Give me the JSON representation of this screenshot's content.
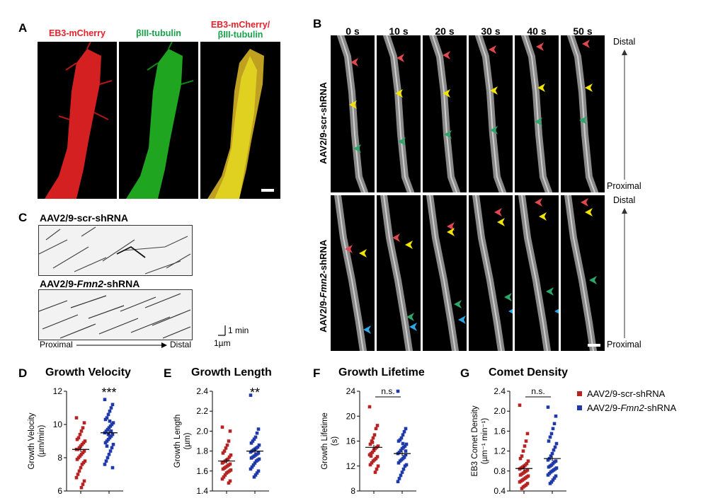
{
  "panel_letters": {
    "A": "A",
    "B": "B",
    "C": "C",
    "D": "D",
    "E": "E",
    "F": "F",
    "G": "G"
  },
  "panelA": {
    "ch1_label": "EB3-mCherry",
    "ch2_label": "βIII-tubulin",
    "merge_label_line1": "EB3-mCherry/",
    "merge_label_line2": "βIII-tubulin",
    "colors": {
      "red": "#e8202a",
      "green": "#16a34a",
      "yellow": "#e0d020"
    }
  },
  "panelB": {
    "times": [
      "0 s",
      "10 s",
      "20 s",
      "30 s",
      "40 s",
      "50 s"
    ],
    "row1_label": "AAV2/9-scr-shRNA",
    "row2_label_pre": "AAV2/9-",
    "row2_label_gene": "Fmn2",
    "row2_label_post": "-shRNA",
    "distal": "Distal",
    "proximal": "Proximal",
    "arrow_colors": {
      "red": "#e2474f",
      "yellow": "#f2e400",
      "green": "#2ea66a",
      "blue": "#2aa8e8"
    }
  },
  "panelC": {
    "kymo1_label": "AAV2/9-scr-shRNA",
    "kymo2_label_pre": "AAV2/9-",
    "kymo2_label_gene": "Fmn2",
    "kymo2_label_post": "-shRNA",
    "axis_proximal": "Proximal",
    "axis_distal": "Distal",
    "scale_time": "1 min",
    "scale_space": "1µm"
  },
  "legend": {
    "scr": "AAV2/9-scr-shRNA",
    "fmn2_pre": "AAV2/9-",
    "fmn2_gene": "Fmn2",
    "fmn2_post": "-shRNA",
    "scr_color": "#b52422",
    "fmn2_color": "#1f3aa8"
  },
  "chart_data": [
    {
      "type": "scatter",
      "panel": "D",
      "title": "Growth Velocity",
      "ylabel_line1": "Growth Velocity",
      "ylabel_line2": "(µm/min)",
      "ylim": [
        6,
        12
      ],
      "yticks": [
        "6",
        "8",
        "10",
        "12"
      ],
      "significance": "***",
      "series": [
        {
          "name": "AAV2/9-scr-shRNA",
          "values": [
            10.4,
            10.1,
            9.8,
            9.6,
            9.4,
            9.2,
            9.1,
            9.0,
            8.9,
            8.8,
            8.7,
            8.6,
            8.5,
            8.5,
            8.4,
            8.3,
            8.2,
            8.1,
            8.0,
            7.9,
            7.8,
            7.7,
            7.6,
            7.4,
            7.2,
            7.0,
            6.8,
            6.6,
            6.4,
            6.2
          ],
          "mean": 8.5
        },
        {
          "name": "AAV2/9-Fmn2-shRNA",
          "values": [
            11.5,
            11.2,
            11.0,
            10.8,
            10.6,
            10.4,
            10.3,
            10.1,
            10.0,
            9.9,
            9.8,
            9.7,
            9.6,
            9.5,
            9.4,
            9.3,
            9.2,
            9.1,
            9.0,
            8.9,
            8.8,
            8.6,
            8.4,
            8.2,
            8.0,
            7.8,
            7.6,
            7.4,
            9.6,
            10.2,
            9.4,
            8.7
          ],
          "mean": 9.5
        }
      ]
    },
    {
      "type": "scatter",
      "panel": "E",
      "title": "Growth Length",
      "ylabel_line1": "Growth Length",
      "ylabel_line2": "(µm)",
      "ylim": [
        1.4,
        2.4
      ],
      "yticks": [
        "1.4",
        "1.6",
        "1.8",
        "2.0",
        "2.2",
        "2.4"
      ],
      "significance": "**",
      "series": [
        {
          "name": "AAV2/9-scr-shRNA",
          "values": [
            2.04,
            2.0,
            1.9,
            1.86,
            1.83,
            1.8,
            1.78,
            1.76,
            1.74,
            1.72,
            1.71,
            1.7,
            1.69,
            1.68,
            1.67,
            1.66,
            1.65,
            1.64,
            1.63,
            1.62,
            1.61,
            1.6,
            1.59,
            1.58,
            1.56,
            1.54,
            1.52,
            1.5,
            1.48
          ],
          "mean": 1.7
        },
        {
          "name": "AAV2/9-Fmn2-shRNA",
          "values": [
            2.36,
            2.02,
            1.98,
            1.94,
            1.92,
            1.9,
            1.88,
            1.86,
            1.84,
            1.83,
            1.82,
            1.81,
            1.8,
            1.79,
            1.78,
            1.77,
            1.76,
            1.75,
            1.74,
            1.73,
            1.72,
            1.71,
            1.7,
            1.68,
            1.66,
            1.64,
            1.62,
            1.6,
            1.58,
            1.56,
            1.54
          ],
          "mean": 1.8
        }
      ]
    },
    {
      "type": "scatter",
      "panel": "F",
      "title": "Growth Lifetime",
      "ylabel_line1": "Growth Lifetime",
      "ylabel_line2": "(s)",
      "ylim": [
        8,
        24
      ],
      "yticks": [
        "8",
        "12",
        "16",
        "20",
        "24"
      ],
      "significance": "n.s.",
      "series": [
        {
          "name": "AAV2/9-scr-shRNA",
          "values": [
            21.5,
            18.5,
            18.0,
            17.0,
            16.5,
            16.0,
            15.5,
            15.2,
            15.0,
            14.8,
            14.5,
            14.2,
            14.0,
            13.8,
            13.5,
            13.2,
            13.0,
            12.8,
            12.5,
            12.2,
            12.0,
            11.5,
            11.0,
            14.6,
            15.8,
            13.6
          ],
          "mean": 15.0
        },
        {
          "name": "AAV2/9-Fmn2-shRNA",
          "values": [
            24.0,
            18.0,
            17.5,
            17.0,
            16.5,
            16.2,
            16.0,
            15.5,
            15.2,
            15.0,
            14.8,
            14.5,
            14.2,
            14.0,
            13.8,
            13.5,
            13.2,
            13.0,
            12.8,
            12.5,
            12.2,
            12.0,
            11.5,
            11.0,
            10.5,
            10.0,
            9.5,
            14.4,
            13.4,
            15.6
          ],
          "mean": 14.0
        }
      ]
    },
    {
      "type": "scatter",
      "panel": "G",
      "title": "Comet Density",
      "ylabel_line1": "EB3 Comet Density",
      "ylabel_line2": "(µm⁻¹ min⁻¹)",
      "ylim": [
        0.4,
        2.4
      ],
      "yticks": [
        "0.4",
        "0.8",
        "1.2",
        "1.6",
        "2.0",
        "2.4"
      ],
      "significance": "n.s.",
      "series": [
        {
          "name": "AAV2/9-scr-shRNA",
          "values": [
            2.12,
            1.55,
            1.4,
            1.3,
            1.2,
            1.1,
            1.05,
            1.0,
            0.95,
            0.92,
            0.9,
            0.88,
            0.86,
            0.84,
            0.82,
            0.8,
            0.78,
            0.76,
            0.74,
            0.72,
            0.7,
            0.68,
            0.66,
            0.64,
            0.62,
            0.6,
            0.58,
            0.55,
            0.52,
            0.5,
            0.48,
            0.45
          ],
          "mean": 0.85
        },
        {
          "name": "AAV2/9-Fmn2-shRNA",
          "values": [
            2.08,
            1.9,
            1.75,
            1.65,
            1.55,
            1.48,
            1.4,
            1.35,
            1.28,
            1.22,
            1.15,
            1.1,
            1.05,
            1.02,
            1.0,
            0.98,
            0.95,
            0.92,
            0.9,
            0.88,
            0.86,
            0.84,
            0.82,
            0.8,
            0.78,
            0.75,
            0.72,
            0.7,
            0.66,
            0.62,
            0.58,
            0.55
          ],
          "mean": 1.05
        }
      ]
    }
  ]
}
